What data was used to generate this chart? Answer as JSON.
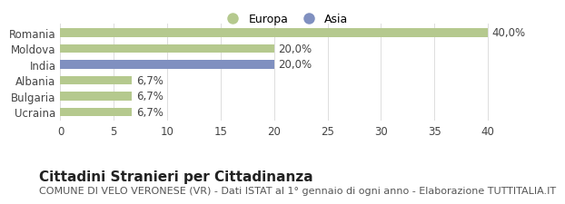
{
  "categories": [
    "Romania",
    "Moldova",
    "India",
    "Albania",
    "Bulgaria",
    "Ucraina"
  ],
  "values": [
    40.0,
    20.0,
    20.0,
    6.7,
    6.7,
    6.7
  ],
  "bar_colors": [
    "#b5c98e",
    "#b5c98e",
    "#8090c0",
    "#b5c98e",
    "#b5c98e",
    "#b5c98e"
  ],
  "labels": [
    "40,0%",
    "20,0%",
    "20,0%",
    "6,7%",
    "6,7%",
    "6,7%"
  ],
  "legend_europa_color": "#b5c98e",
  "legend_asia_color": "#8090c0",
  "xlim": [
    0,
    42
  ],
  "xticks": [
    0,
    5,
    10,
    15,
    20,
    25,
    30,
    35,
    40
  ],
  "title": "Cittadini Stranieri per Cittadinanza",
  "subtitle": "COMUNE DI VELO VERONESE (VR) - Dati ISTAT al 1° gennaio di ogni anno - Elaborazione TUTTITALIA.IT",
  "background_color": "#ffffff",
  "bar_height": 0.55,
  "title_fontsize": 11,
  "subtitle_fontsize": 8,
  "label_fontsize": 8.5,
  "tick_fontsize": 8.5
}
